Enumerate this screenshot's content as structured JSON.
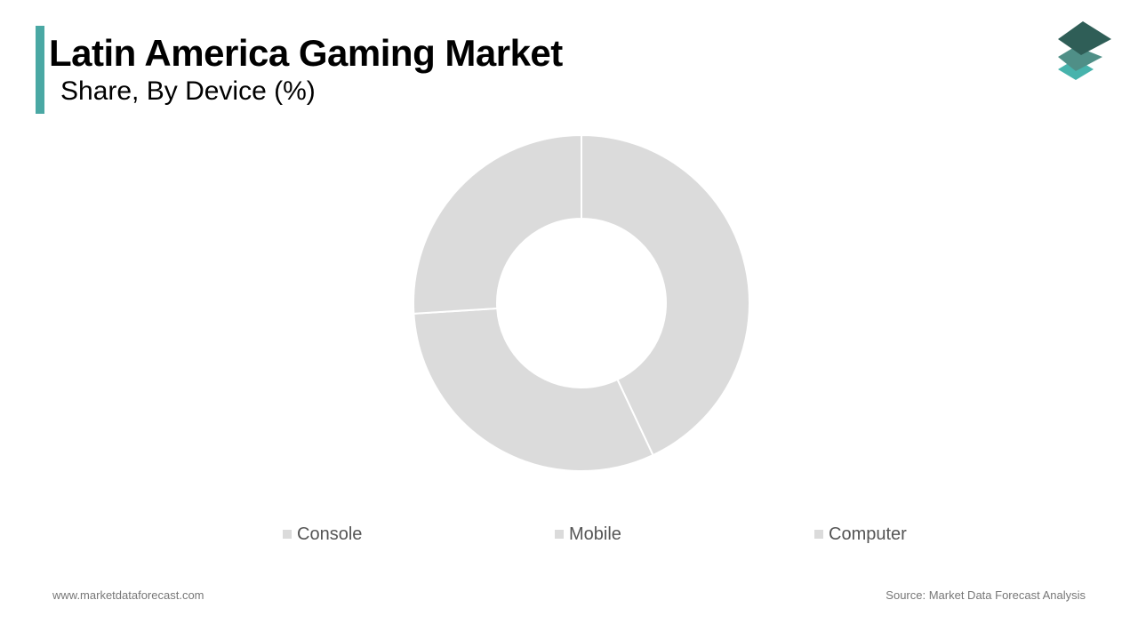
{
  "header": {
    "title": "Latin America Gaming Market",
    "subtitle": "Share, By Device (%)"
  },
  "colors": {
    "accent": "#4aa8a4",
    "slice": "#dbdbdb",
    "logo_top": "#2f5e57",
    "logo_mid": "#4f8f87",
    "logo_bottom": "#47b3ac"
  },
  "icons": {
    "logo": "stacked-layers-icon"
  },
  "chart_data": {
    "type": "pie",
    "donut": true,
    "categories": [
      "Console",
      "Mobile",
      "Computer"
    ],
    "values": [
      43,
      31,
      26
    ],
    "legend_position": "bottom"
  },
  "footer": {
    "website": "www.marketdataforecast.com",
    "source": "Source: Market Data Forecast Analysis"
  }
}
